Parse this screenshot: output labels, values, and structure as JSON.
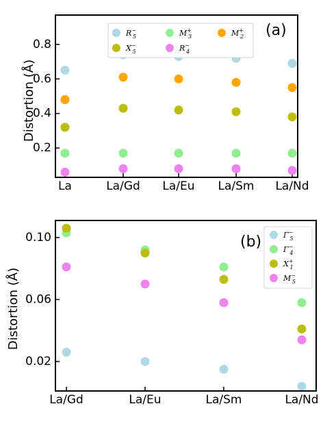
{
  "chart_data": [
    {
      "type": "scatter",
      "panel_label": "(a)",
      "ylabel": "Distortion (Å)",
      "categories": [
        "La",
        "La/Gd",
        "La/Eu",
        "La/Sm",
        "La/Nd"
      ],
      "ylim": [
        0.03,
        0.97
      ],
      "yticks": [
        0.2,
        0.4,
        0.6,
        0.8
      ],
      "ytick_labels": [
        "0.2",
        "0.4",
        "0.6",
        "0.8"
      ],
      "legend_position": "top-center",
      "series": [
        {
          "key": "R5m",
          "label_base": "R",
          "label_sub": "5",
          "label_sup": "−",
          "color": "#add8e6",
          "values": [
            0.65,
            0.74,
            0.73,
            0.72,
            0.69
          ]
        },
        {
          "key": "X5m",
          "label_base": "X",
          "label_sub": "5",
          "label_sup": "−",
          "color": "#bdbd10",
          "values": [
            0.32,
            0.43,
            0.42,
            0.41,
            0.38
          ]
        },
        {
          "key": "M3p",
          "label_base": "M",
          "label_sub": "3",
          "label_sup": "+",
          "color": "#90ee90",
          "values": [
            0.17,
            0.17,
            0.17,
            0.17,
            0.17
          ]
        },
        {
          "key": "R4m",
          "label_base": "R",
          "label_sub": "4",
          "label_sup": "−",
          "color": "#ee82ee",
          "values": [
            0.06,
            0.08,
            0.08,
            0.08,
            0.07
          ]
        },
        {
          "key": "M2p",
          "label_base": "M",
          "label_sub": "2",
          "label_sup": "+",
          "color": "#ffa500",
          "values": [
            0.48,
            0.61,
            0.6,
            0.58,
            0.55
          ]
        }
      ]
    },
    {
      "type": "scatter",
      "panel_label": "(b)",
      "ylabel": "Distortion (Å)",
      "categories": [
        "La/Gd",
        "La/Eu",
        "La/Sm",
        "La/Nd"
      ],
      "ylim": [
        0.001,
        0.111
      ],
      "yticks": [
        0.02,
        0.06,
        0.1
      ],
      "ytick_labels": [
        "0.02",
        "0.06",
        "0.10"
      ],
      "legend_position": "right",
      "series": [
        {
          "key": "G5m",
          "label_base": "Γ",
          "label_sub": "5",
          "label_sup": "−",
          "color": "#add8e6",
          "values": [
            0.026,
            0.02,
            0.015,
            0.004
          ]
        },
        {
          "key": "G4m",
          "label_base": "Γ",
          "label_sub": "4",
          "label_sup": "−",
          "color": "#90ee90",
          "values": [
            0.103,
            0.092,
            0.081,
            0.058
          ]
        },
        {
          "key": "X1p",
          "label_base": "X",
          "label_sub": "1",
          "label_sup": "+",
          "color": "#bdbd10",
          "values": [
            0.106,
            0.09,
            0.073,
            0.041
          ]
        },
        {
          "key": "M5m",
          "label_base": "M",
          "label_sub": "5",
          "label_sup": "−",
          "color": "#ee82ee",
          "values": [
            0.081,
            0.07,
            0.058,
            0.034
          ]
        }
      ]
    }
  ]
}
